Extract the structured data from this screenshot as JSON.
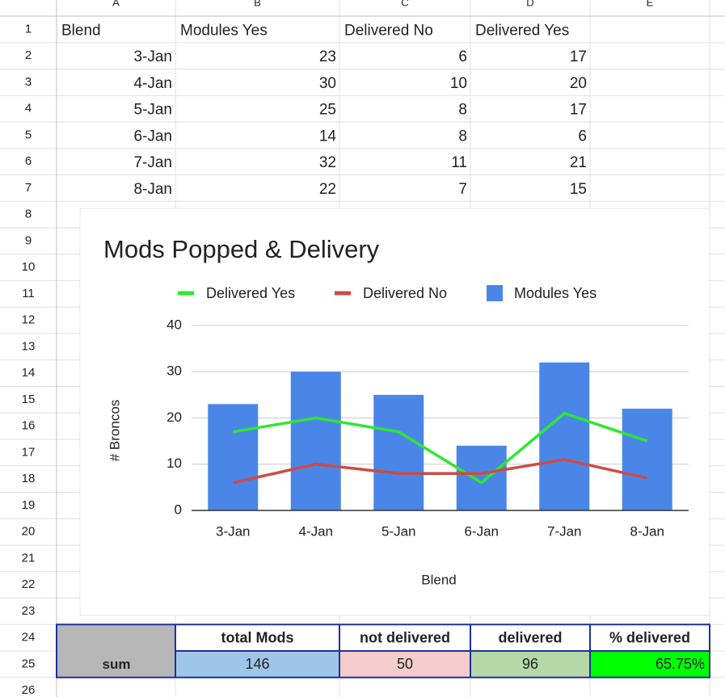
{
  "sheet": {
    "columns": [
      "A",
      "B",
      "C",
      "D",
      "E"
    ],
    "row_numbers": [
      1,
      2,
      3,
      4,
      5,
      6,
      7,
      8,
      9,
      10,
      11,
      12,
      13,
      14,
      15,
      16,
      17,
      18,
      19,
      20,
      21,
      22,
      23,
      24,
      25,
      26
    ],
    "rows": [
      [
        "Blend",
        "Modules Yes",
        "Delivered No",
        "Delivered Yes"
      ],
      [
        "3-Jan",
        23,
        6,
        17
      ],
      [
        "4-Jan",
        30,
        10,
        20
      ],
      [
        "5-Jan",
        25,
        8,
        17
      ],
      [
        "6-Jan",
        14,
        8,
        6
      ],
      [
        "7-Jan",
        32,
        11,
        21
      ],
      [
        "8-Jan",
        22,
        7,
        15
      ]
    ],
    "summary": {
      "headers": [
        "total Mods",
        "not delivered",
        "delivered",
        "% delivered"
      ],
      "label": "sum",
      "values": [
        146,
        50,
        96,
        "65.75%"
      ]
    }
  },
  "chart_data": {
    "type": "combo",
    "title": "Mods Popped & Delivery",
    "x_label": "Blend",
    "y_label": "# Broncos",
    "categories": [
      "3-Jan",
      "4-Jan",
      "5-Jan",
      "6-Jan",
      "7-Jan",
      "8-Jan"
    ],
    "series": [
      {
        "name": "Delivered Yes",
        "type": "line",
        "color": "#2ee82e",
        "values": [
          17,
          20,
          17,
          6,
          21,
          15
        ]
      },
      {
        "name": "Delivered No",
        "type": "line",
        "color": "#cc4b45",
        "values": [
          6,
          10,
          8,
          8,
          11,
          7
        ]
      },
      {
        "name": "Modules Yes",
        "type": "bar",
        "color": "#4a86e8",
        "values": [
          23,
          30,
          25,
          14,
          32,
          22
        ]
      }
    ],
    "ylim": [
      0,
      40
    ],
    "yticks": [
      0,
      10,
      20,
      30,
      40
    ],
    "grid": true,
    "legend": "top"
  }
}
